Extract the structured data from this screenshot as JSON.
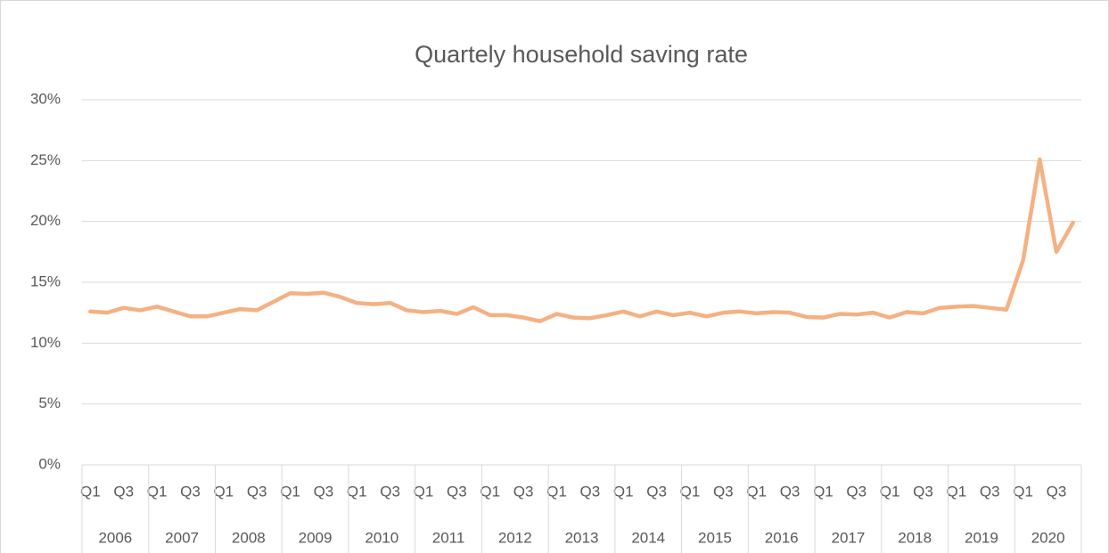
{
  "chart_data": {
    "type": "line",
    "title": "Quartely household saving rate",
    "categories": [
      "Q1",
      null,
      "Q3",
      null,
      "Q1",
      null,
      "Q3",
      null,
      "Q1",
      null,
      "Q3",
      null,
      "Q1",
      null,
      "Q3",
      null,
      "Q1",
      null,
      "Q3",
      null,
      "Q1",
      null,
      "Q3",
      null,
      "Q1",
      null,
      "Q3",
      null,
      "Q1",
      null,
      "Q3",
      null,
      "Q1",
      null,
      "Q3",
      null,
      "Q1",
      null,
      "Q3",
      null,
      "Q1",
      null,
      "Q3",
      null,
      "Q1",
      null,
      "Q3",
      null,
      "Q1",
      null,
      "Q3",
      null,
      "Q1",
      null,
      "Q3",
      null,
      "Q1",
      null,
      "Q3",
      null
    ],
    "groups": [
      "2006",
      "2007",
      "2008",
      "2009",
      "2010",
      "2011",
      "2012",
      "2013",
      "2014",
      "2015",
      "2016",
      "2017",
      "2018",
      "2019",
      "2020"
    ],
    "series": [
      {
        "color": "#f4b183",
        "values": [
          12.6,
          12.5,
          12.9,
          12.7,
          13.0,
          12.6,
          12.2,
          12.2,
          12.5,
          12.8,
          12.7,
          13.4,
          14.1,
          14.05,
          14.15,
          13.8,
          13.3,
          13.2,
          13.3,
          12.7,
          12.55,
          12.65,
          12.4,
          12.95,
          12.3,
          12.3,
          12.1,
          11.8,
          12.4,
          12.1,
          12.05,
          12.3,
          12.6,
          12.2,
          12.6,
          12.3,
          12.5,
          12.2,
          12.5,
          12.6,
          12.45,
          12.55,
          12.5,
          12.15,
          12.1,
          12.4,
          12.35,
          12.5,
          12.1,
          12.55,
          12.45,
          12.9,
          13.0,
          13.05,
          12.9,
          12.75,
          16.8,
          25.1,
          17.5,
          19.9
        ]
      }
    ],
    "ylim": [
      0,
      30
    ],
    "yticks": [
      {
        "value": 0,
        "label": "0%"
      },
      {
        "value": 5,
        "label": "5%"
      },
      {
        "value": 10,
        "label": "10%"
      },
      {
        "value": 15,
        "label": "15%"
      },
      {
        "value": 20,
        "label": "20%"
      },
      {
        "value": 25,
        "label": "25%"
      },
      {
        "value": 30,
        "label": "30%"
      }
    ],
    "grid": true
  }
}
